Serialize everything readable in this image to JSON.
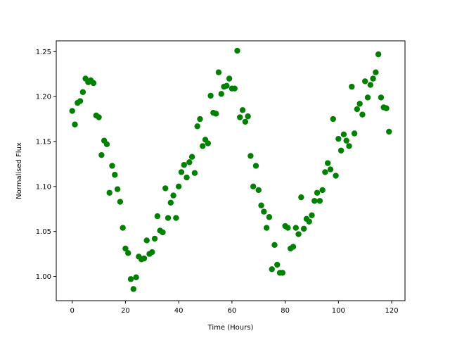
{
  "chart_data": {
    "type": "scatter",
    "title": "",
    "xlabel": "Time (Hours)",
    "ylabel": "Normalised Flux",
    "xlim": [
      -6,
      125
    ],
    "ylim": [
      0.973,
      1.262
    ],
    "xticks": [
      0,
      20,
      40,
      60,
      80,
      100,
      120
    ],
    "yticks": [
      1.0,
      1.05,
      1.1,
      1.15,
      1.2,
      1.25
    ],
    "xtick_labels": [
      "0",
      "20",
      "40",
      "60",
      "80",
      "100",
      "120"
    ],
    "ytick_labels": [
      "1.00",
      "1.05",
      "1.10",
      "1.15",
      "1.20",
      "1.25"
    ],
    "grid": false,
    "legend": "none",
    "series": [
      {
        "color": "#008000",
        "x": [
          0,
          1,
          2,
          3,
          4,
          5,
          6,
          7,
          8,
          9,
          10,
          11,
          12,
          13,
          14,
          15,
          16,
          17,
          18,
          19,
          20,
          21,
          22,
          23,
          24,
          25,
          26,
          27,
          28,
          29,
          30,
          31,
          32,
          33,
          34,
          35,
          36,
          37,
          38,
          39,
          40,
          41,
          42,
          43,
          44,
          45,
          46,
          47,
          48,
          49,
          50,
          51,
          52,
          53,
          54,
          55,
          56,
          57,
          58,
          59,
          60,
          61,
          62,
          63,
          64,
          65,
          66,
          67,
          68,
          69,
          70,
          71,
          72,
          73,
          74,
          75,
          76,
          77,
          78,
          79,
          80,
          81,
          82,
          83,
          84,
          85,
          86,
          87,
          88,
          89,
          90,
          91,
          92,
          93,
          94,
          95,
          96,
          97,
          98,
          99,
          100,
          101,
          102,
          103,
          104,
          105,
          106,
          107,
          108,
          109,
          110,
          111,
          112,
          113,
          114,
          115,
          116,
          117,
          118,
          119
        ],
        "y": [
          1.184,
          1.169,
          1.193,
          1.195,
          1.205,
          1.22,
          1.216,
          1.218,
          1.215,
          1.179,
          1.177,
          1.135,
          1.151,
          1.147,
          1.093,
          1.123,
          1.113,
          1.097,
          1.083,
          1.054,
          1.031,
          1.026,
          0.997,
          0.986,
          0.999,
          1.022,
          1.019,
          1.02,
          1.04,
          1.025,
          1.027,
          1.042,
          1.067,
          1.051,
          1.049,
          1.098,
          1.065,
          1.082,
          1.09,
          1.065,
          1.1,
          1.116,
          1.124,
          1.11,
          1.127,
          1.133,
          1.115,
          1.167,
          1.175,
          1.145,
          1.152,
          1.148,
          1.201,
          1.182,
          1.181,
          1.227,
          1.203,
          1.211,
          1.212,
          1.22,
          1.209,
          1.209,
          1.251,
          1.177,
          1.185,
          1.172,
          1.178,
          1.134,
          1.1,
          1.123,
          1.096,
          1.079,
          1.072,
          1.054,
          1.066,
          1.008,
          1.035,
          1.013,
          1.004,
          1.004,
          1.056,
          1.054,
          1.031,
          1.033,
          1.054,
          1.047,
          1.088,
          1.053,
          1.064,
          1.061,
          1.068,
          1.084,
          1.093,
          1.084,
          1.096,
          1.116,
          1.126,
          1.119,
          1.175,
          1.112,
          1.153,
          1.14,
          1.158,
          1.151,
          1.145,
          1.211,
          1.159,
          1.186,
          1.192,
          1.18,
          1.217,
          1.199,
          1.213,
          1.22,
          1.227,
          1.247,
          1.199,
          1.188,
          1.187,
          1.161
        ]
      }
    ]
  }
}
